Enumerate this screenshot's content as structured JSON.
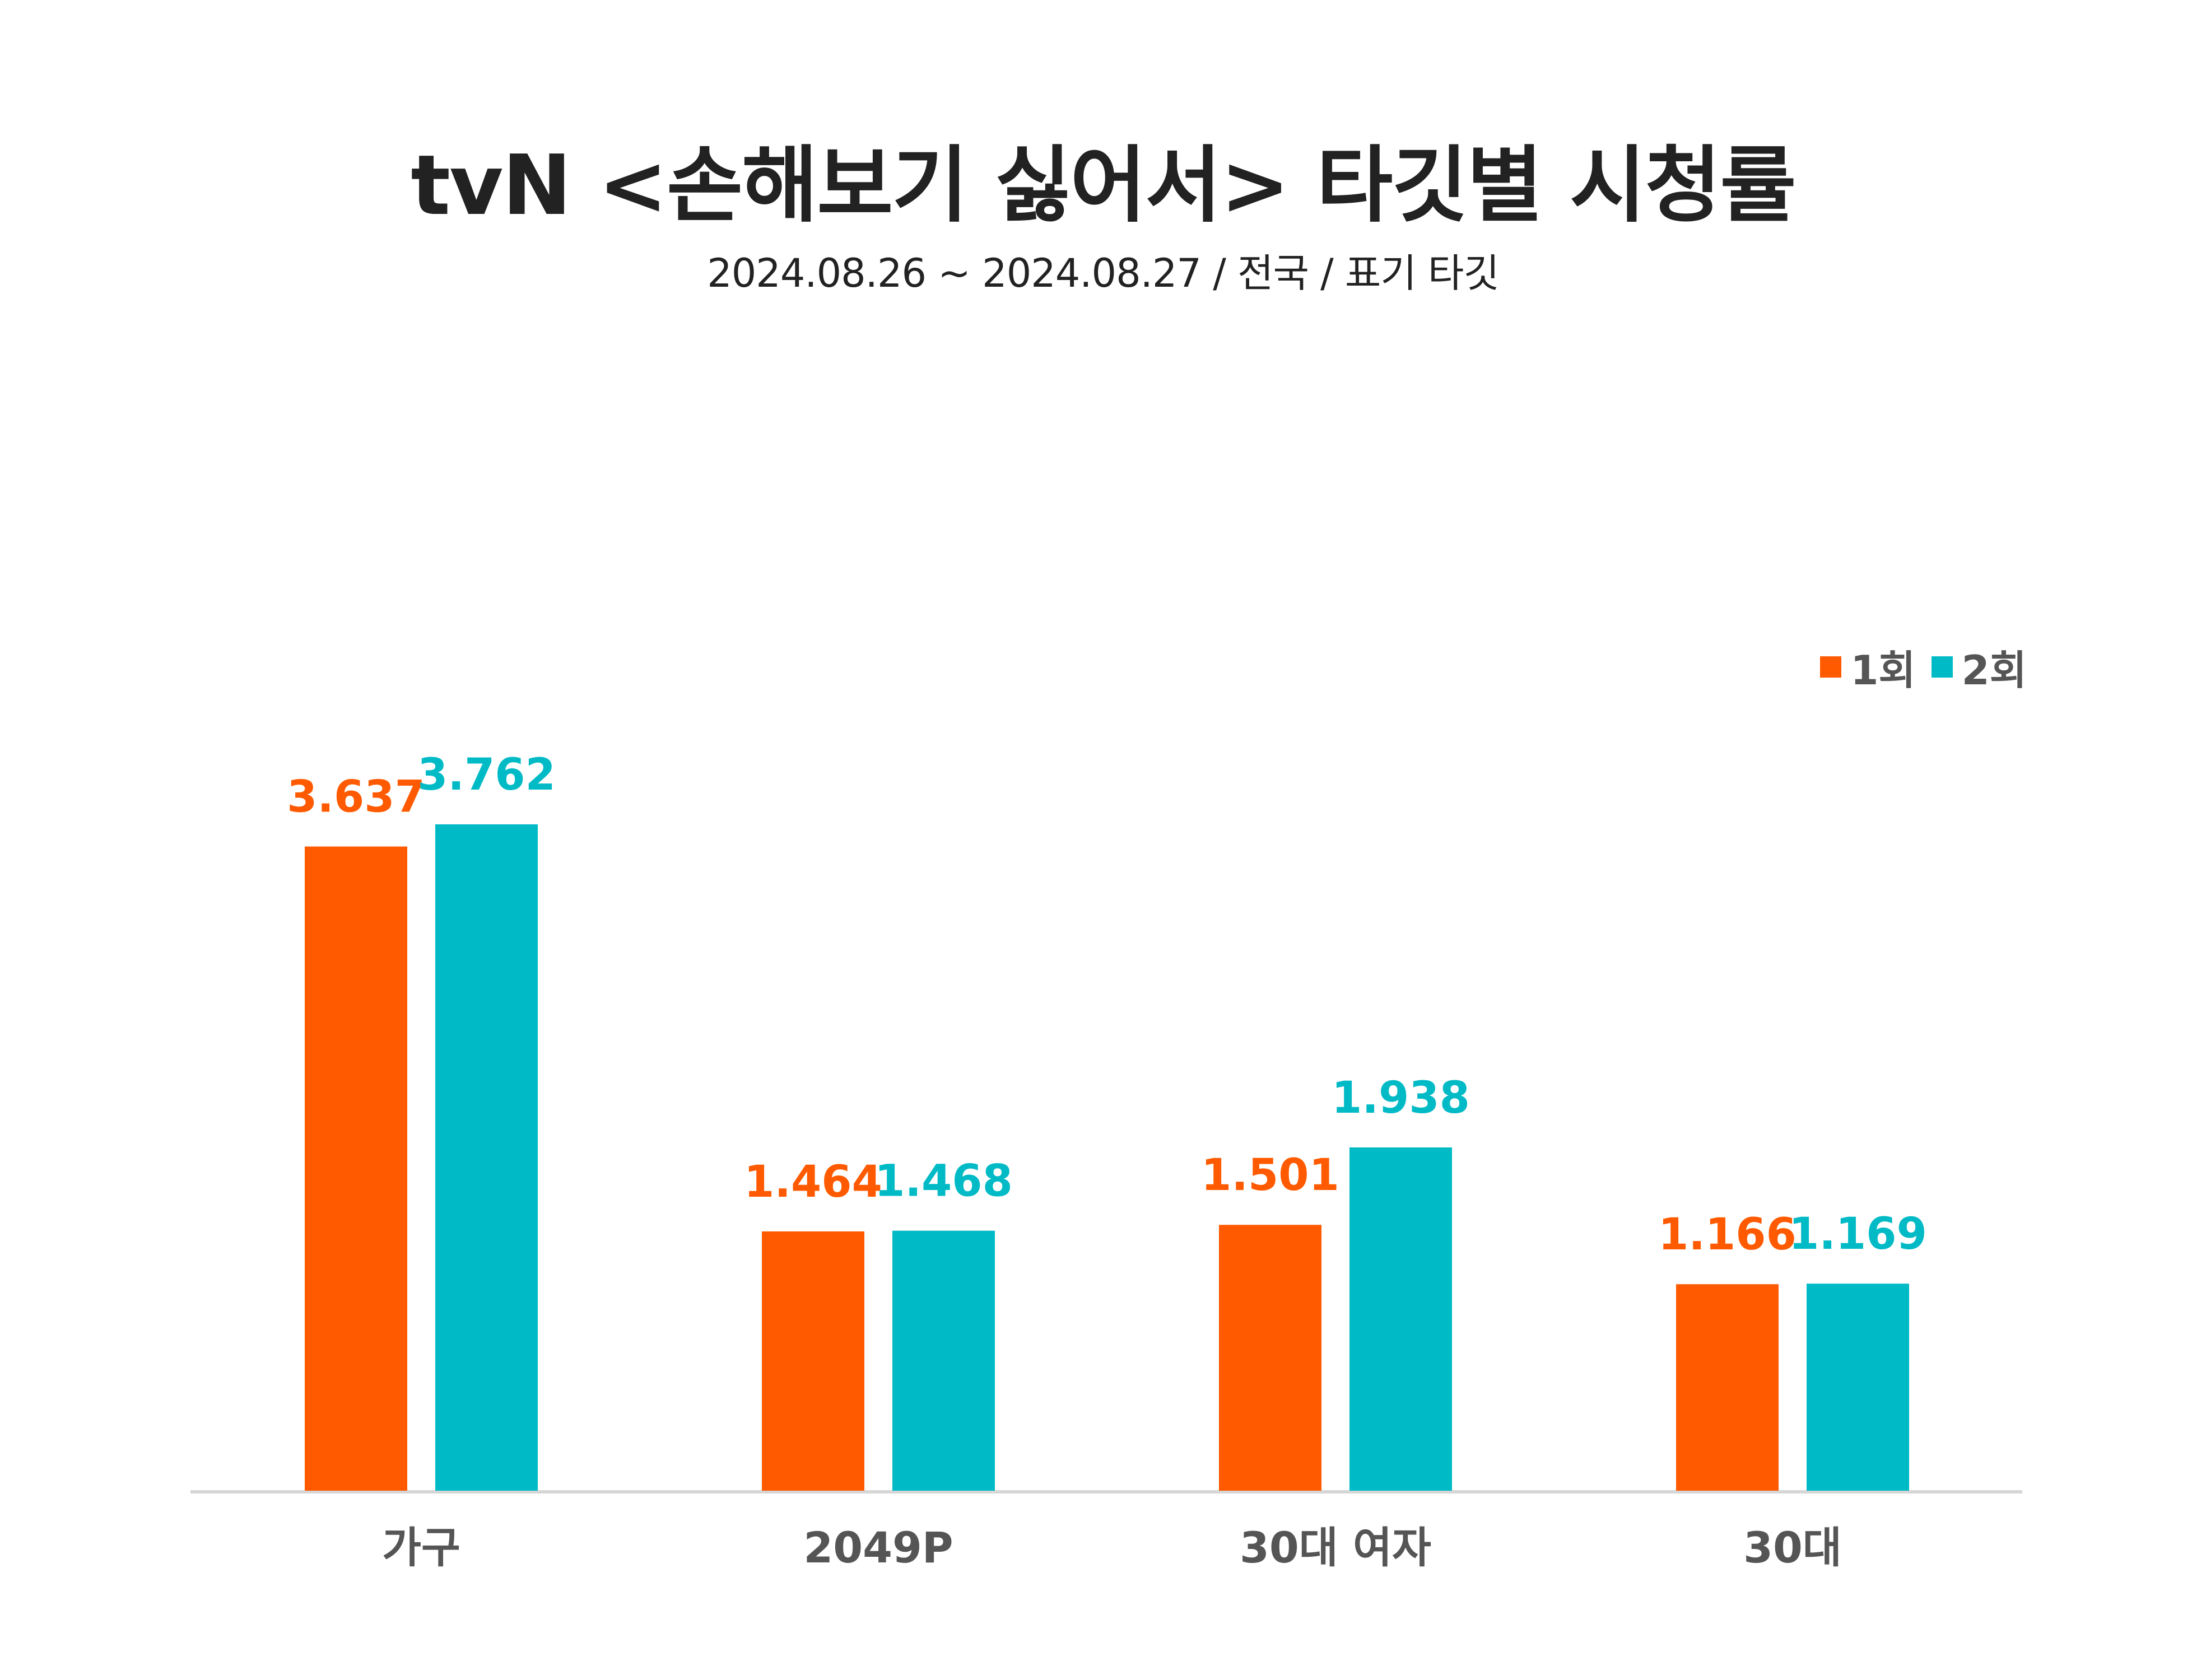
{
  "chart_data": {
    "type": "bar",
    "title": "tvN <손해보기 싫어서> 타깃별 시청률",
    "subtitle": "2024.08.26 ~ 2024.08.27 / 전국 / 표기 타깃",
    "categories": [
      "가구",
      "2049P",
      "30대 여자",
      "30대"
    ],
    "series": [
      {
        "name": "1회",
        "color": "#FF5A00",
        "values": [
          3.637,
          1.464,
          1.501,
          1.166
        ],
        "labels": [
          "3.637",
          "1.464",
          "1.501",
          "1.166"
        ]
      },
      {
        "name": "2회",
        "color": "#00BAC6",
        "values": [
          3.762,
          1.468,
          1.938,
          1.169
        ],
        "labels": [
          "3.762",
          "1.468",
          "1.938",
          "1.169"
        ]
      }
    ],
    "ylim": [
      0,
      4
    ],
    "grid": false,
    "legend_position": "top-right",
    "xlabel": "",
    "ylabel": ""
  }
}
